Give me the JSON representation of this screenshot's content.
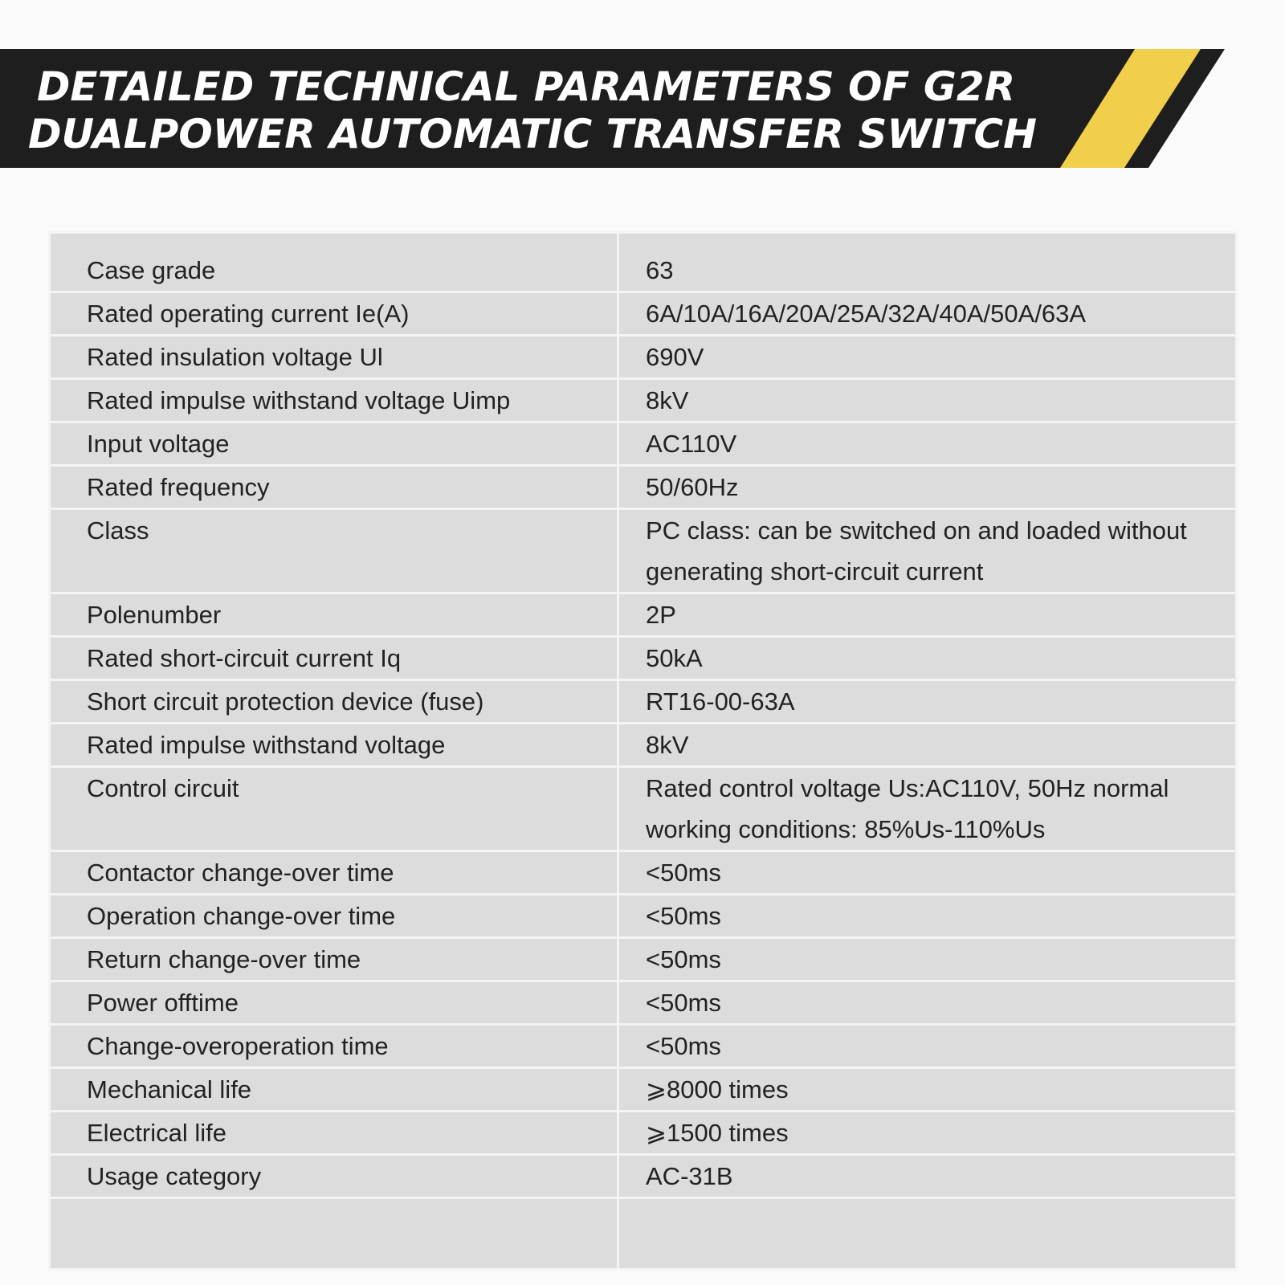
{
  "header": {
    "title": [
      "DETAILED TECHNICAL PARAMETERS OF G2R",
      "DUALPOWER AUTOMATIC TRANSFER SWITCH"
    ]
  },
  "table": {
    "rows": [
      [
        "Case grade",
        "63"
      ],
      [
        "Rated operating current Ie(A)",
        "6A/10A/16A/20A/25A/32A/40A/50A/63A"
      ],
      [
        "Rated insulation voltage Ul",
        "690V"
      ],
      [
        "Rated impulse withstand voltage Uimp",
        "8kV"
      ],
      [
        "Input voltage",
        "AC110V"
      ],
      [
        "Rated frequency",
        "50/60Hz"
      ],
      [
        "Class",
        "PC class: can be switched on and loaded without generating short-circuit current"
      ],
      [
        "Polenumber",
        "2P"
      ],
      [
        "Rated short-circuit current Iq",
        "50kA"
      ],
      [
        "Short circuit protection device (fuse)",
        "RT16-00-63A"
      ],
      [
        "Rated impulse withstand voltage",
        "8kV"
      ],
      [
        "Control circuit",
        "Rated control voltage Us:AC110V, 50Hz normal working conditions: 85%Us-110%Us"
      ],
      [
        "Contactor change-over time",
        "<50ms"
      ],
      [
        "Operation change-over time",
        "<50ms"
      ],
      [
        "Return change-over time",
        "<50ms"
      ],
      [
        "Power offtime",
        "<50ms"
      ],
      [
        "Change-overoperation time",
        "<50ms"
      ],
      [
        "Mechanical life",
        "⩾8000 times"
      ],
      [
        "Electrical life",
        "⩾1500 times"
      ],
      [
        "Usage category",
        "AC-31B"
      ]
    ]
  }
}
